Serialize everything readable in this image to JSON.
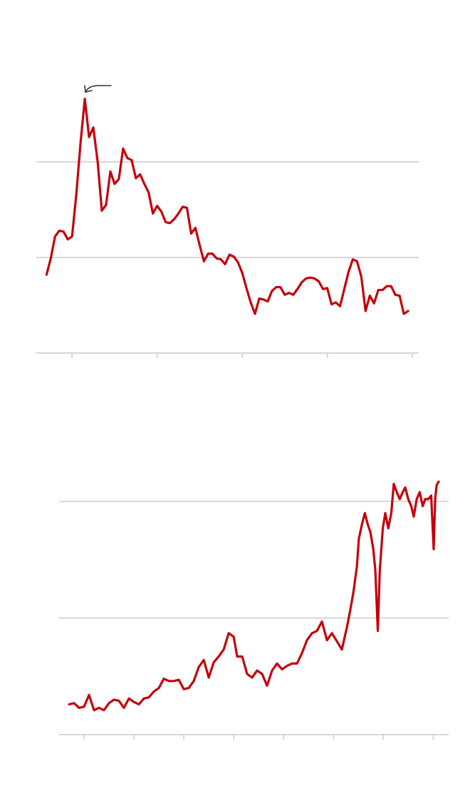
{
  "chart_data": [
    {
      "type": "line",
      "x": [
        -6,
        -5,
        -4,
        -3,
        -2,
        -1,
        0,
        1,
        2,
        3,
        4,
        5,
        6,
        7,
        8,
        9,
        10,
        11,
        12,
        13,
        14,
        15,
        16,
        17,
        18,
        19,
        20,
        21,
        22,
        23,
        24,
        25,
        26,
        27,
        28,
        29,
        30,
        31,
        32,
        33,
        34,
        35,
        36,
        37,
        38,
        39,
        40,
        41,
        42,
        43,
        44,
        45,
        46,
        47,
        48,
        49,
        50,
        51,
        52,
        53,
        54,
        55,
        56,
        57,
        58,
        59,
        60,
        61,
        62,
        63,
        64,
        65,
        66,
        67,
        68,
        69,
        70,
        71,
        72,
        73,
        74,
        75,
        76,
        77,
        78,
        79
      ],
      "values": [
        0.82,
        0.99,
        1.22,
        1.28,
        1.27,
        1.19,
        1.22,
        1.66,
        2.2,
        2.66,
        2.26,
        2.36,
        2.01,
        1.49,
        1.55,
        1.9,
        1.77,
        1.82,
        2.14,
        2.04,
        2.02,
        1.83,
        1.87,
        1.77,
        1.68,
        1.46,
        1.54,
        1.48,
        1.37,
        1.36,
        1.4,
        1.46,
        1.53,
        1.52,
        1.25,
        1.31,
        1.13,
        0.96,
        1.04,
        1.04,
        0.99,
        0.98,
        0.93,
        1.03,
        1.01,
        0.95,
        0.84,
        0.68,
        0.53,
        0.41,
        0.57,
        0.56,
        0.54,
        0.65,
        0.69,
        0.69,
        0.61,
        0.63,
        0.61,
        0.67,
        0.74,
        0.78,
        0.79,
        0.78,
        0.75,
        0.67,
        0.68,
        0.51,
        0.53,
        0.49,
        0.67,
        0.85,
        0.98,
        0.96,
        0.8,
        0.44,
        0.6,
        0.52,
        0.66,
        0.66,
        0.7,
        0.7,
        0.61,
        0.6,
        0.41,
        0.44
      ],
      "color": "#c4000b",
      "xlim": [
        -8.4,
        81.5
      ],
      "xticks": [
        0,
        20,
        40,
        60,
        80
      ],
      "ylim": [
        0,
        2.8
      ],
      "yticks": [
        0,
        1,
        2
      ],
      "grid": true
    },
    {
      "type": "line",
      "x": [
        -3,
        -2,
        -1,
        0,
        1,
        2,
        3,
        4,
        5,
        6,
        7,
        8,
        9,
        10,
        11,
        12,
        13,
        14,
        15,
        16,
        17,
        18,
        19,
        20,
        21,
        22,
        23,
        24,
        25,
        26,
        27,
        28,
        29,
        30,
        30.7,
        31.7,
        32.7,
        33.7,
        34.7,
        35.7,
        36.7,
        37.7,
        38.7,
        39.7,
        40.7,
        41.7,
        42.7,
        43.7,
        44.7,
        45.7,
        46.7,
        47.7,
        48.7,
        49.7,
        50.7,
        51.7,
        52.7,
        53.3,
        54,
        54.7,
        55.1,
        55.7,
        56.3,
        56.9,
        57.4,
        58,
        58.4,
        58.9,
        59.3,
        59.9,
        60.4,
        61,
        61.6,
        62.1,
        62.7,
        63.3,
        63.9,
        64.4,
        65,
        65.6,
        66.1,
        66.7,
        67.3,
        67.9,
        68.4,
        69,
        69.6,
        70.1,
        70.4,
        70.7,
        71.1
      ],
      "values": [
        0.26,
        0.27,
        0.23,
        0.24,
        0.34,
        0.21,
        0.23,
        0.21,
        0.27,
        0.3,
        0.29,
        0.23,
        0.31,
        0.28,
        0.26,
        0.31,
        0.32,
        0.37,
        0.4,
        0.48,
        0.46,
        0.46,
        0.47,
        0.39,
        0.4,
        0.46,
        0.58,
        0.64,
        0.49,
        0.62,
        0.67,
        0.73,
        0.87,
        0.84,
        0.67,
        0.67,
        0.52,
        0.49,
        0.55,
        0.52,
        0.42,
        0.55,
        0.61,
        0.56,
        0.59,
        0.61,
        0.61,
        0.7,
        0.81,
        0.87,
        0.89,
        0.97,
        0.81,
        0.87,
        0.8,
        0.73,
        0.92,
        1.05,
        1.22,
        1.44,
        1.68,
        1.8,
        1.9,
        1.8,
        1.74,
        1.59,
        1.41,
        0.89,
        1.41,
        1.77,
        1.9,
        1.77,
        1.9,
        2.15,
        2.08,
        2.02,
        2.08,
        2.12,
        2.02,
        1.96,
        1.87,
        2.02,
        2.08,
        1.96,
        2.02,
        2.02,
        2.05,
        1.59,
        2.02,
        2.14,
        2.17
      ],
      "color": "#c4000b",
      "xlim": [
        -5,
        73.1
      ],
      "xticks": [
        0,
        10,
        20,
        30,
        40,
        50,
        60,
        70
      ],
      "ylim": [
        0,
        2.3
      ],
      "yticks": [
        0,
        1,
        2
      ],
      "grid": true
    }
  ]
}
